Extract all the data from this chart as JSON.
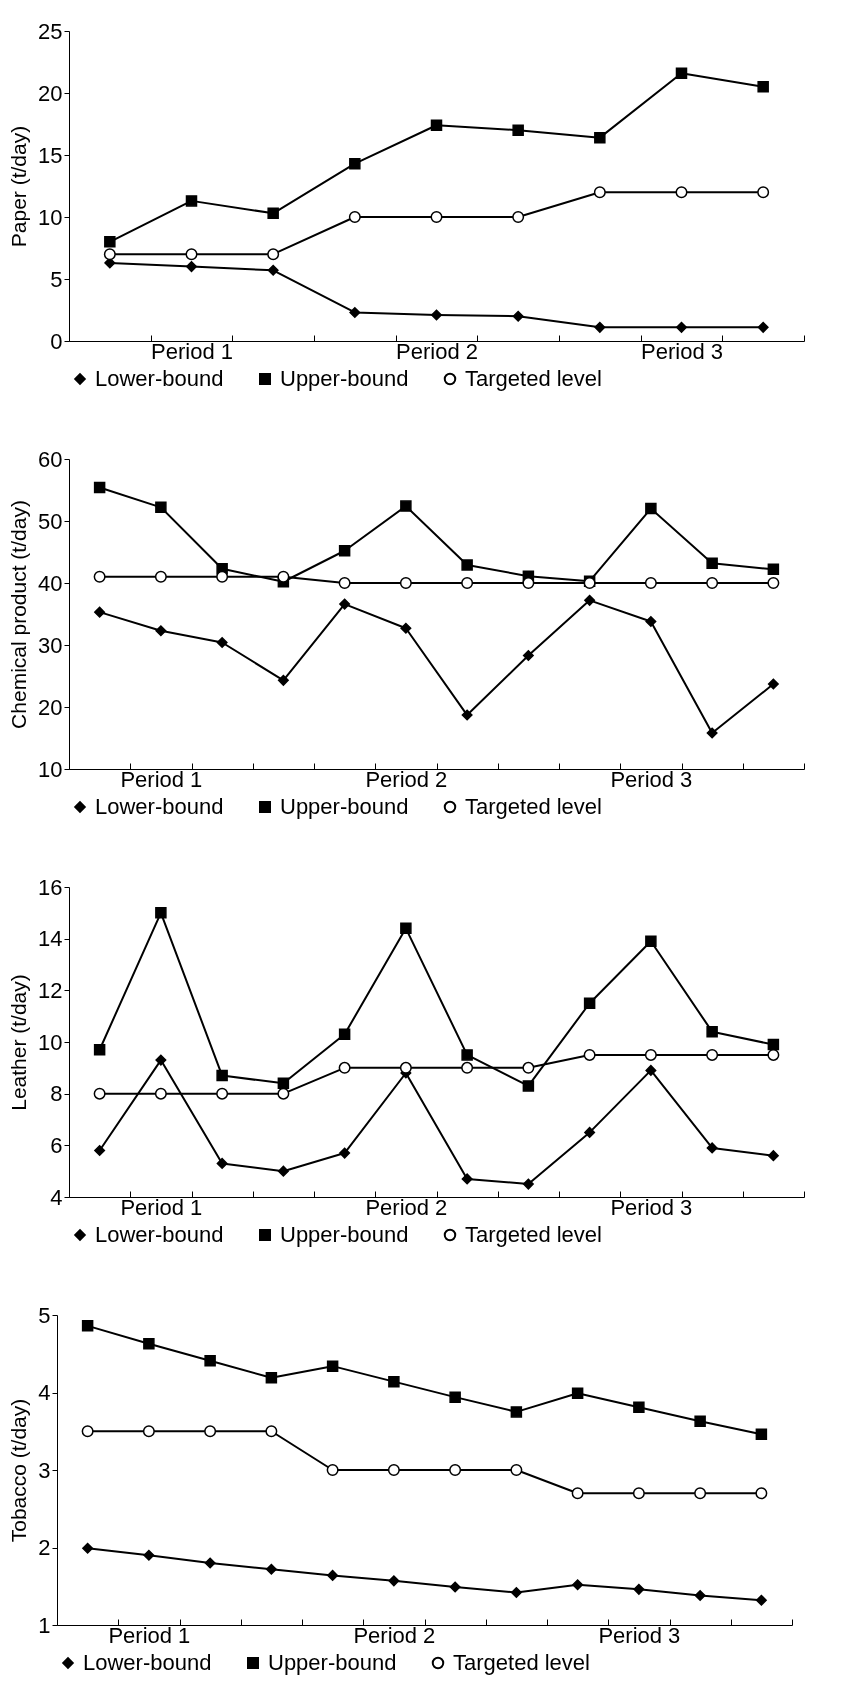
{
  "chart_data": [
    {
      "type": "line",
      "ylabel": "Paper (t/day)",
      "categories": [
        null,
        "Period 1",
        null,
        null,
        "Period 2",
        null,
        null,
        "Period 3",
        null
      ],
      "ylim": [
        0,
        25
      ],
      "yticks": [
        0,
        5,
        10,
        15,
        20,
        25
      ],
      "grid": false,
      "legend": "bottom",
      "series": [
        {
          "name": "Lower-bound",
          "color": "#000000",
          "marker": "diamond",
          "values": [
            6.3,
            6.0,
            5.7,
            2.3,
            2.1,
            2.0,
            1.1,
            1.1,
            1.1
          ]
        },
        {
          "name": "Upper-bound",
          "color": "#000000",
          "marker": "square",
          "values": [
            8.0,
            11.3,
            10.3,
            14.3,
            17.4,
            17.0,
            16.4,
            21.6,
            20.5
          ]
        },
        {
          "name": "Targeted level",
          "color": "#000000",
          "marker": "circle",
          "values": [
            7,
            7,
            7,
            10,
            10,
            10,
            12,
            12,
            12
          ]
        }
      ]
    },
    {
      "type": "line",
      "ylabel": "Chemical product (t/day)",
      "categories": [
        null,
        "Period 1",
        null,
        null,
        null,
        "Period 2",
        null,
        null,
        null,
        "Period 3",
        null,
        null
      ],
      "ylim": [
        10,
        60
      ],
      "yticks": [
        10,
        20,
        30,
        40,
        50,
        60
      ],
      "grid": false,
      "legend": "bottom",
      "series": [
        {
          "name": "Lower-bound",
          "color": "#000000",
          "marker": "diamond",
          "values": [
            35.3,
            32.3,
            30.4,
            24.3,
            36.6,
            32.7,
            18.7,
            28.3,
            37.2,
            33.8,
            15.8,
            23.7
          ]
        },
        {
          "name": "Upper-bound",
          "color": "#000000",
          "marker": "square",
          "values": [
            55.4,
            52.2,
            42.3,
            40.2,
            45.2,
            52.4,
            42.9,
            41.1,
            40.3,
            52.0,
            43.2,
            42.2
          ]
        },
        {
          "name": "Targeted level",
          "color": "#000000",
          "marker": "circle",
          "values": [
            41,
            41,
            41,
            41,
            40,
            40,
            40,
            40,
            40,
            40,
            40,
            40
          ]
        }
      ]
    },
    {
      "type": "line",
      "ylabel": "Leather (t/day)",
      "categories": [
        null,
        "Period 1",
        null,
        null,
        null,
        "Period 2",
        null,
        null,
        null,
        "Period 3",
        null,
        null
      ],
      "ylim": [
        4,
        16
      ],
      "yticks": [
        4,
        6,
        8,
        10,
        12,
        14,
        16
      ],
      "grid": false,
      "legend": "bottom",
      "series": [
        {
          "name": "Lower-bound",
          "color": "#000000",
          "marker": "diamond",
          "values": [
            5.8,
            9.3,
            5.3,
            5.0,
            5.7,
            8.8,
            4.7,
            4.5,
            6.5,
            8.9,
            5.9,
            5.6
          ]
        },
        {
          "name": "Upper-bound",
          "color": "#000000",
          "marker": "square",
          "values": [
            9.7,
            15.0,
            8.7,
            8.4,
            10.3,
            14.4,
            9.5,
            8.3,
            11.5,
            13.9,
            10.4,
            9.9
          ]
        },
        {
          "name": "Targeted level",
          "color": "#000000",
          "marker": "circle",
          "values": [
            8,
            8,
            8,
            8,
            9,
            9,
            9,
            9,
            9.5,
            9.5,
            9.5,
            9.5
          ]
        }
      ]
    },
    {
      "type": "line",
      "ylabel": "Tobacco (t/day)",
      "categories": [
        null,
        "Period 1",
        null,
        null,
        null,
        "Period 2",
        null,
        null,
        null,
        "Period 3",
        null,
        null
      ],
      "ylim": [
        1,
        5
      ],
      "yticks": [
        1,
        2,
        3,
        4,
        5
      ],
      "grid": false,
      "legend": "bottom",
      "series": [
        {
          "name": "Lower-bound",
          "color": "#000000",
          "marker": "diamond",
          "values": [
            1.99,
            1.9,
            1.8,
            1.72,
            1.64,
            1.57,
            1.49,
            1.42,
            1.52,
            1.46,
            1.38,
            1.32
          ]
        },
        {
          "name": "Upper-bound",
          "color": "#000000",
          "marker": "square",
          "values": [
            4.86,
            4.63,
            4.41,
            4.19,
            4.34,
            4.14,
            3.94,
            3.75,
            3.99,
            3.81,
            3.63,
            3.46
          ]
        },
        {
          "name": "Targeted level",
          "color": "#000000",
          "marker": "circle",
          "values": [
            3.5,
            3.5,
            3.5,
            3.5,
            3.0,
            3.0,
            3.0,
            3.0,
            2.7,
            2.7,
            2.7,
            2.7
          ]
        }
      ]
    }
  ]
}
